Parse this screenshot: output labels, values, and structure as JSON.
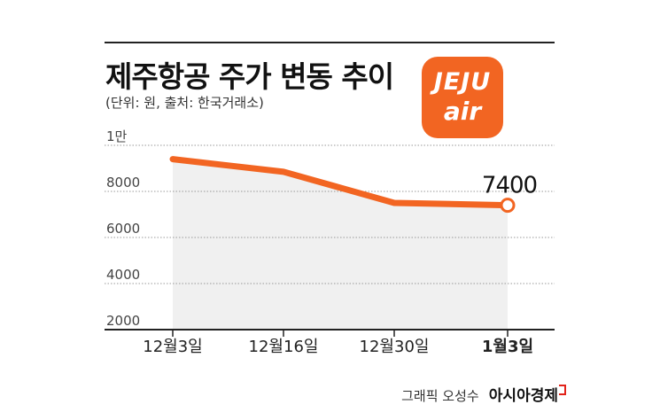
{
  "chart_data": {
    "type": "area",
    "title": "제주항공 주가 변동 추이",
    "subtitle": "(단위: 원, 출처: 한국거래소)",
    "categories": [
      "12월3일",
      "12월16일",
      "12월30일",
      "1월3일"
    ],
    "bold_categories": [
      "1월3일"
    ],
    "values": [
      9400,
      8850,
      7500,
      7400
    ],
    "last_value_label": "7400",
    "yticks": [
      {
        "value": 10000,
        "label": "1만"
      },
      {
        "value": 8000,
        "label": "8000"
      },
      {
        "value": 6000,
        "label": "6000"
      },
      {
        "value": 4000,
        "label": "4000"
      },
      {
        "value": 2000,
        "label": "2000"
      }
    ],
    "ylim": [
      2000,
      10000
    ],
    "grid": true,
    "line_color": "#f26522",
    "area_color": "#f0f0f0"
  },
  "logo": {
    "line1": "JEJU",
    "line2": "air",
    "color": "#f26522"
  },
  "footer": {
    "credit": "그래픽 오성수",
    "brand": "아시아경제"
  }
}
